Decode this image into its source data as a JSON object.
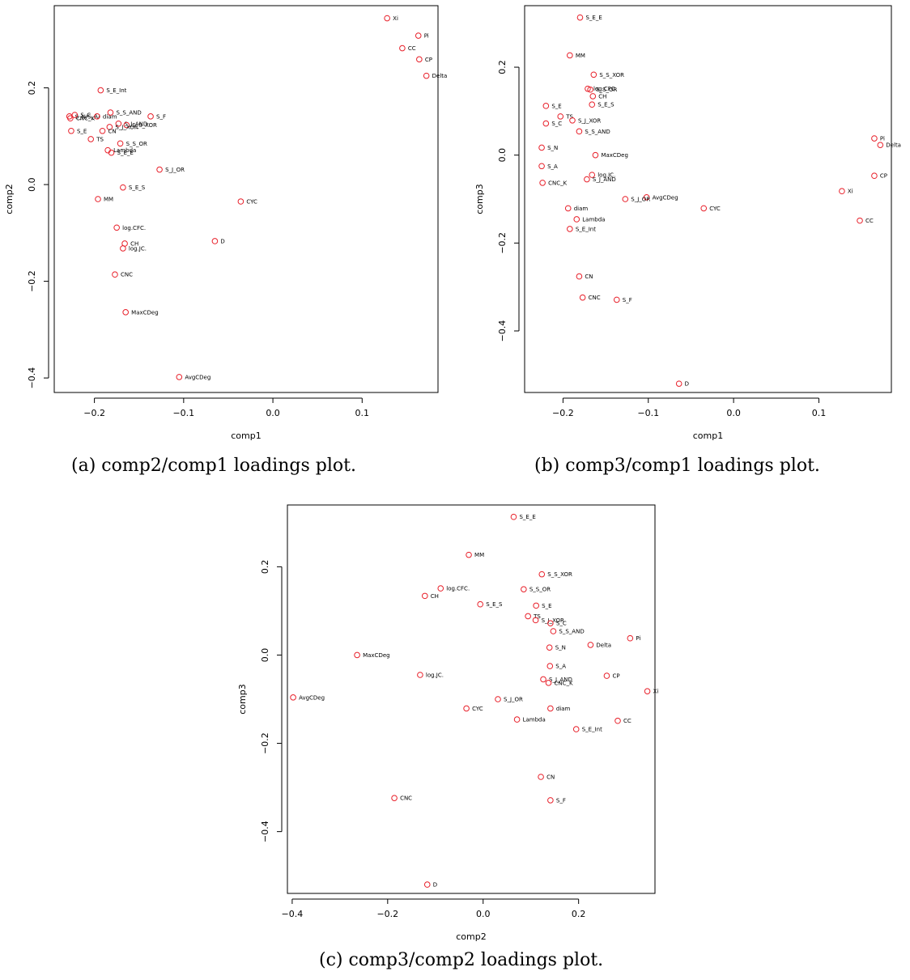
{
  "chart_data": [
    {
      "type": "scatter",
      "caption": "(a) comp2/comp1 loadings plot.",
      "xlabel": "comp1",
      "ylabel": "comp2",
      "xlim": [
        -0.245,
        0.185
      ],
      "ylim": [
        -0.43,
        0.37
      ],
      "xticks": [
        -0.2,
        -0.1,
        0.0,
        0.1
      ],
      "yticks": [
        -0.4,
        -0.2,
        0.0,
        0.2
      ],
      "tick_labels_x": [
        "−0.2",
        "−0.1",
        "0.0",
        "0.1"
      ],
      "tick_labels_y": [
        "−0.4",
        "−0.2",
        "0.0",
        "0.2"
      ],
      "label_position": "right",
      "points": [
        {
          "label": "Xi",
          "x": 0.128,
          "y": 0.344
        },
        {
          "label": "Pi",
          "x": 0.163,
          "y": 0.308
        },
        {
          "label": "CC",
          "x": 0.145,
          "y": 0.282
        },
        {
          "label": "CP",
          "x": 0.164,
          "y": 0.259
        },
        {
          "label": "Delta",
          "x": 0.172,
          "y": 0.225
        },
        {
          "label": "S_E_Int",
          "x": -0.193,
          "y": 0.195
        },
        {
          "label": "S_N/S_A/",
          "x": -0.228,
          "y": 0.141
        },
        {
          "label": "CNC_K",
          "x": -0.227,
          "y": 0.137
        },
        {
          "label": "S_C",
          "x": -0.222,
          "y": 0.144
        },
        {
          "label": "diam",
          "x": -0.197,
          "y": 0.141
        },
        {
          "label": "S_S_AND",
          "x": -0.182,
          "y": 0.149
        },
        {
          "label": "S_J_AND",
          "x": -0.173,
          "y": 0.126
        },
        {
          "label": "S_F",
          "x": -0.137,
          "y": 0.141
        },
        {
          "label": "S_S_XOR",
          "x": -0.164,
          "y": 0.123
        },
        {
          "label": "S_E",
          "x": -0.226,
          "y": 0.111
        },
        {
          "label": "S_J_XOR",
          "x": -0.183,
          "y": 0.119
        },
        {
          "label": "CN",
          "x": -0.191,
          "y": 0.111
        },
        {
          "label": "TS",
          "x": -0.204,
          "y": 0.094
        },
        {
          "label": "S_S_OR",
          "x": -0.171,
          "y": 0.085
        },
        {
          "label": "Lambda",
          "x": -0.185,
          "y": 0.071
        },
        {
          "label": "S_E_E",
          "x": -0.181,
          "y": 0.066
        },
        {
          "label": "S_J_OR",
          "x": -0.127,
          "y": 0.031
        },
        {
          "label": "S_E_S",
          "x": -0.168,
          "y": -0.006
        },
        {
          "label": "MM",
          "x": -0.196,
          "y": -0.03
        },
        {
          "label": "CYC",
          "x": -0.036,
          "y": -0.035
        },
        {
          "label": "log.CFC.",
          "x": -0.175,
          "y": -0.089
        },
        {
          "label": "CH",
          "x": -0.166,
          "y": -0.122
        },
        {
          "label": "D",
          "x": -0.065,
          "y": -0.117
        },
        {
          "label": "log.JC.",
          "x": -0.168,
          "y": -0.132
        },
        {
          "label": "CNC",
          "x": -0.177,
          "y": -0.186
        },
        {
          "label": "MaxCDeg",
          "x": -0.165,
          "y": -0.264
        },
        {
          "label": "AvgCDeg",
          "x": -0.105,
          "y": -0.398
        }
      ]
    },
    {
      "type": "scatter",
      "caption": "(b) comp3/comp1 loadings plot.",
      "xlabel": "comp1",
      "ylabel": "comp3",
      "xlim": [
        -0.245,
        0.185
      ],
      "ylim": [
        -0.54,
        0.34
      ],
      "xticks": [
        -0.2,
        -0.1,
        0.0,
        0.1
      ],
      "yticks": [
        -0.4,
        -0.2,
        0.0,
        0.2
      ],
      "tick_labels_x": [
        "−0.2",
        "−0.1",
        "0.0",
        "0.1"
      ],
      "tick_labels_y": [
        "−0.4",
        "−0.2",
        "0.0",
        "0.2"
      ],
      "label_position": "right",
      "points": [
        {
          "label": "S_E_E",
          "x": -0.18,
          "y": 0.313
        },
        {
          "label": "MM",
          "x": -0.192,
          "y": 0.227
        },
        {
          "label": "S_S_XOR",
          "x": -0.164,
          "y": 0.183
        },
        {
          "label": "log.CFC.",
          "x": -0.171,
          "y": 0.151
        },
        {
          "label": "S_S_OR",
          "x": -0.168,
          "y": 0.149
        },
        {
          "label": "CH",
          "x": -0.165,
          "y": 0.134
        },
        {
          "label": "S_E",
          "x": -0.22,
          "y": 0.112
        },
        {
          "label": "S_E_S",
          "x": -0.166,
          "y": 0.115
        },
        {
          "label": "TS",
          "x": -0.203,
          "y": 0.088
        },
        {
          "label": "S_J_XOR",
          "x": -0.189,
          "y": 0.079
        },
        {
          "label": "S_C",
          "x": -0.22,
          "y": 0.072
        },
        {
          "label": "S_S_AND",
          "x": -0.181,
          "y": 0.054
        },
        {
          "label": "Pi",
          "x": 0.165,
          "y": 0.038
        },
        {
          "label": "S_N",
          "x": -0.225,
          "y": 0.017
        },
        {
          "label": "Delta",
          "x": 0.172,
          "y": 0.023
        },
        {
          "label": "MaxCDeg",
          "x": -0.162,
          "y": 0.0
        },
        {
          "label": "S_A",
          "x": -0.225,
          "y": -0.025
        },
        {
          "label": "CP",
          "x": 0.165,
          "y": -0.047
        },
        {
          "label": "log.JC.",
          "x": -0.166,
          "y": -0.045
        },
        {
          "label": "S_J_AND",
          "x": -0.172,
          "y": -0.055
        },
        {
          "label": "CNC_K",
          "x": -0.224,
          "y": -0.063
        },
        {
          "label": "Xi",
          "x": 0.127,
          "y": -0.082
        },
        {
          "label": "AvgCDeg",
          "x": -0.102,
          "y": -0.096
        },
        {
          "label": "S_J_OR",
          "x": -0.127,
          "y": -0.1
        },
        {
          "label": "diam",
          "x": -0.194,
          "y": -0.121
        },
        {
          "label": "CYC",
          "x": -0.035,
          "y": -0.121
        },
        {
          "label": "Lambda",
          "x": -0.184,
          "y": -0.146
        },
        {
          "label": "CC",
          "x": 0.148,
          "y": -0.149
        },
        {
          "label": "S_E_Int",
          "x": -0.192,
          "y": -0.168
        },
        {
          "label": "CN",
          "x": -0.181,
          "y": -0.276
        },
        {
          "label": "CNC",
          "x": -0.177,
          "y": -0.324
        },
        {
          "label": "S_F",
          "x": -0.137,
          "y": -0.329
        },
        {
          "label": "D",
          "x": -0.064,
          "y": -0.52
        }
      ]
    },
    {
      "type": "scatter",
      "caption": "(c) comp3/comp2 loadings plot.",
      "xlabel": "comp2",
      "ylabel": "comp3",
      "xlim": [
        -0.41,
        0.36
      ],
      "ylim": [
        -0.54,
        0.34
      ],
      "xticks": [
        -0.4,
        -0.2,
        0.0,
        0.2
      ],
      "yticks": [
        -0.4,
        -0.2,
        0.0,
        0.2
      ],
      "tick_labels_x": [
        "−0.4",
        "−0.2",
        "0.0",
        "0.2"
      ],
      "tick_labels_y": [
        "−0.4",
        "−0.2",
        "0.0",
        "0.2"
      ],
      "label_position": "right",
      "points": [
        {
          "label": "S_E_E",
          "x": 0.064,
          "y": 0.313
        },
        {
          "label": "MM",
          "x": -0.03,
          "y": 0.227
        },
        {
          "label": "S_S_XOR",
          "x": 0.123,
          "y": 0.183
        },
        {
          "label": "log.CFC.",
          "x": -0.089,
          "y": 0.151
        },
        {
          "label": "S_S_OR",
          "x": 0.085,
          "y": 0.149
        },
        {
          "label": "CH",
          "x": -0.122,
          "y": 0.134
        },
        {
          "label": "S_E_S",
          "x": -0.006,
          "y": 0.115
        },
        {
          "label": "S_E",
          "x": 0.111,
          "y": 0.112
        },
        {
          "label": "TS",
          "x": 0.094,
          "y": 0.088
        },
        {
          "label": "S_J_XOR",
          "x": 0.11,
          "y": 0.079
        },
        {
          "label": "S_C",
          "x": 0.141,
          "y": 0.072
        },
        {
          "label": "S_S_AND",
          "x": 0.147,
          "y": 0.054
        },
        {
          "label": "Pi",
          "x": 0.308,
          "y": 0.038
        },
        {
          "label": "S_N",
          "x": 0.139,
          "y": 0.017
        },
        {
          "label": "Delta",
          "x": 0.225,
          "y": 0.023
        },
        {
          "label": "MaxCDeg",
          "x": -0.264,
          "y": 0.0
        },
        {
          "label": "S_A",
          "x": 0.14,
          "y": -0.025
        },
        {
          "label": "log.JC.",
          "x": -0.132,
          "y": -0.045
        },
        {
          "label": "CP",
          "x": 0.259,
          "y": -0.047
        },
        {
          "label": "S_J_AND",
          "x": 0.126,
          "y": -0.055
        },
        {
          "label": "CNC_K",
          "x": 0.137,
          "y": -0.063
        },
        {
          "label": "Xi",
          "x": 0.344,
          "y": -0.082
        },
        {
          "label": "AvgCDeg",
          "x": -0.398,
          "y": -0.096
        },
        {
          "label": "S_J_OR",
          "x": 0.031,
          "y": -0.1
        },
        {
          "label": "CYC",
          "x": -0.035,
          "y": -0.121
        },
        {
          "label": "diam",
          "x": 0.141,
          "y": -0.121
        },
        {
          "label": "Lambda",
          "x": 0.071,
          "y": -0.146
        },
        {
          "label": "CC",
          "x": 0.282,
          "y": -0.149
        },
        {
          "label": "S_E_Int",
          "x": 0.195,
          "y": -0.168
        },
        {
          "label": "CN",
          "x": 0.121,
          "y": -0.276
        },
        {
          "label": "CNC",
          "x": -0.186,
          "y": -0.324
        },
        {
          "label": "S_F",
          "x": 0.141,
          "y": -0.329
        },
        {
          "label": "D",
          "x": -0.117,
          "y": -0.52
        }
      ]
    }
  ],
  "colors": {
    "marker": "#e8202a",
    "axis": "#000000",
    "background": "#ffffff"
  }
}
